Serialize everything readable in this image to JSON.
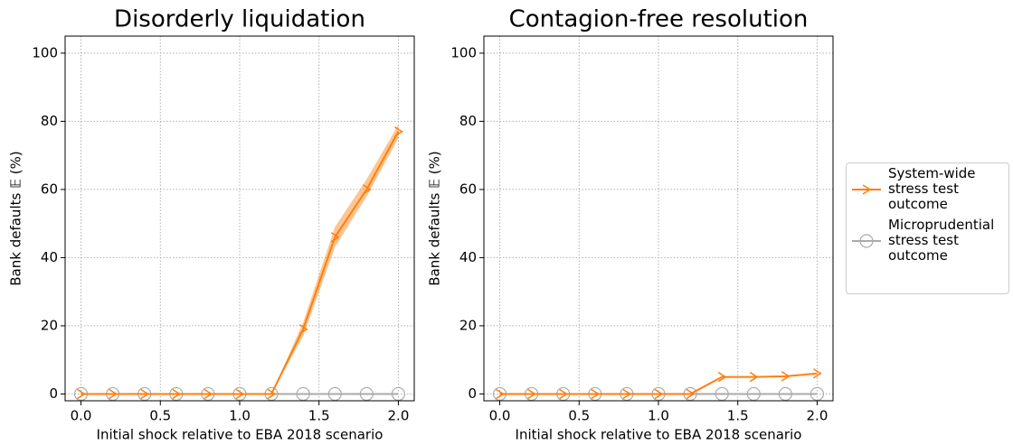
{
  "chart_data": [
    {
      "type": "line",
      "title": "Disorderly liquidation",
      "xlabel": "Initial shock relative to EBA 2018 scenario",
      "ylabel": "Bank defaults 𝔼 (%)",
      "x": [
        0.0,
        0.2,
        0.4,
        0.6,
        0.8,
        1.0,
        1.2,
        1.4,
        1.6,
        1.8,
        2.0
      ],
      "series": [
        {
          "name": "System-wide stress test outcome",
          "color": "#ff7f0e",
          "marker": "arrow",
          "values": [
            0,
            0,
            0,
            0,
            0,
            0,
            0,
            19,
            46,
            60,
            77
          ],
          "band_lower": [
            0,
            0,
            0,
            0,
            0,
            0,
            0,
            17,
            43,
            58,
            75
          ],
          "band_upper": [
            0,
            0,
            0,
            0,
            0,
            0,
            0,
            21,
            49,
            63,
            79
          ]
        },
        {
          "name": "Microprudential stress test outcome",
          "color": "#aaaaaa",
          "marker": "circle",
          "values": [
            0,
            0,
            0,
            0,
            0,
            0,
            0,
            0,
            0,
            0,
            0
          ]
        }
      ],
      "xlim": [
        -0.1,
        2.1
      ],
      "ylim": [
        -2,
        105
      ],
      "xticks": [
        {
          "value": 0,
          "label": "0.0"
        },
        0.5,
        {
          "value": 1,
          "label": "1.0"
        },
        1.5,
        {
          "value": 2,
          "label": "2.0"
        }
      ],
      "yticks": [
        0,
        20,
        40,
        60,
        80,
        100
      ],
      "grid": true,
      "legend": "outside right"
    },
    {
      "type": "line",
      "title": "Contagion-free resolution",
      "xlabel": "Initial shock relative to EBA 2018 scenario",
      "ylabel": "Bank defaults 𝔼 (%)",
      "x": [
        0.0,
        0.2,
        0.4,
        0.6,
        0.8,
        1.0,
        1.2,
        1.4,
        1.6,
        1.8,
        2.0
      ],
      "series": [
        {
          "name": "System-wide stress test outcome",
          "color": "#ff7f0e",
          "marker": "arrow",
          "values": [
            0,
            0,
            0,
            0,
            0,
            0,
            0,
            5,
            5,
            5.2,
            6
          ]
        },
        {
          "name": "Microprudential stress test outcome",
          "color": "#aaaaaa",
          "marker": "circle",
          "values": [
            0,
            0,
            0,
            0,
            0,
            0,
            0,
            0,
            0,
            0,
            0
          ]
        }
      ],
      "xlim": [
        -0.1,
        2.1
      ],
      "ylim": [
        -2,
        105
      ],
      "xticks": [
        {
          "value": 0,
          "label": "0.0"
        },
        0.5,
        {
          "value": 1,
          "label": "1.0"
        },
        1.5,
        {
          "value": 2,
          "label": "2.0"
        }
      ],
      "yticks": [
        0,
        20,
        40,
        60,
        80,
        100
      ],
      "grid": true
    }
  ]
}
